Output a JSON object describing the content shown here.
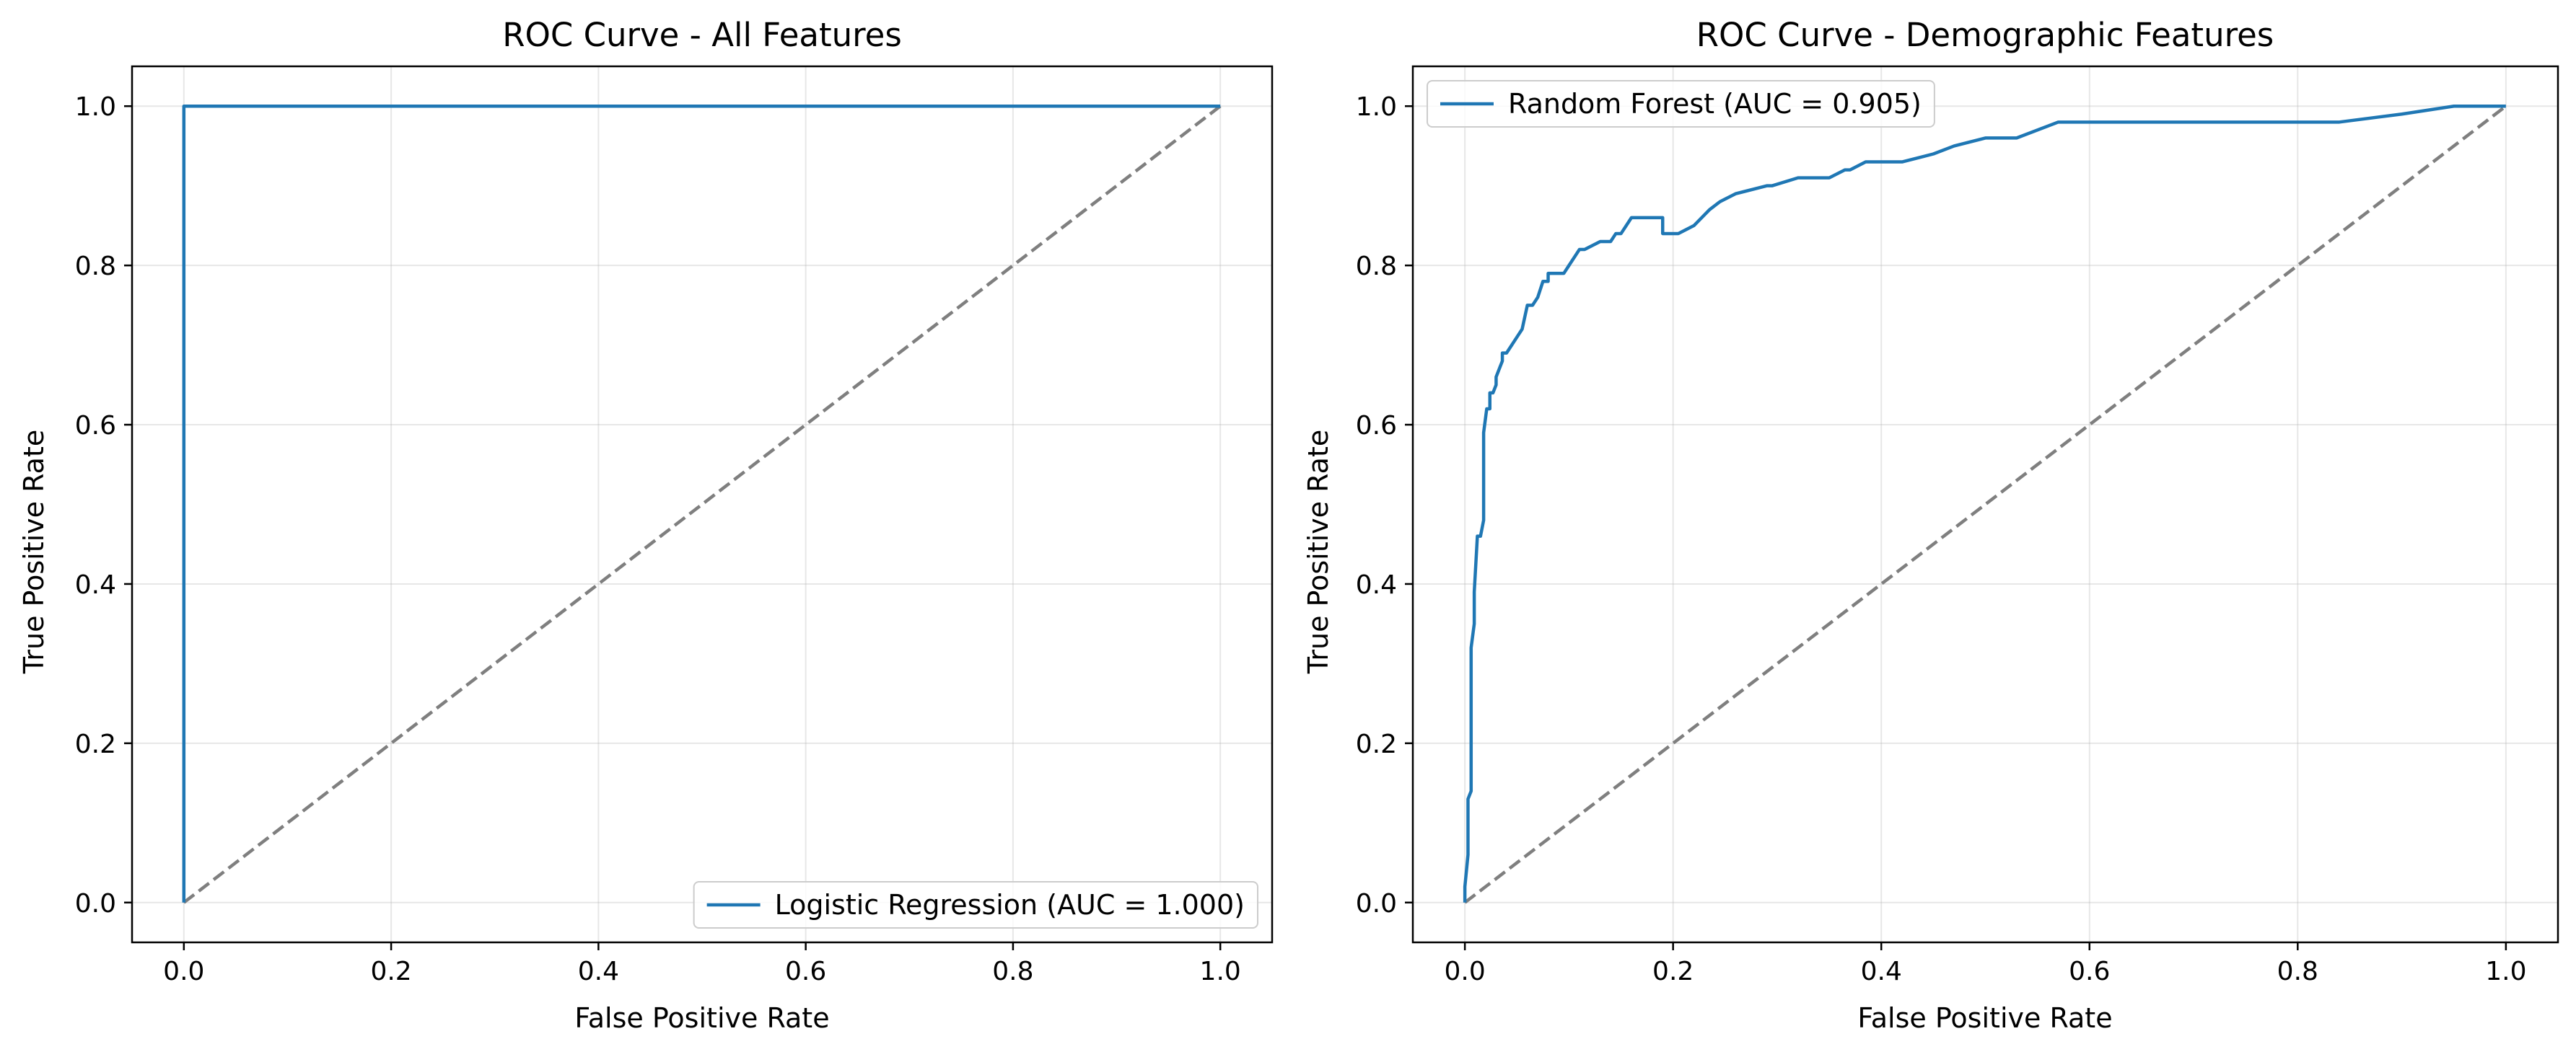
{
  "chart_data": [
    {
      "type": "line",
      "title": "ROC Curve - All Features",
      "xlabel": "False Positive Rate",
      "ylabel": "True Positive Rate",
      "xlim": [
        -0.05,
        1.05
      ],
      "ylim": [
        -0.05,
        1.05
      ],
      "xticks": [
        "0.0",
        "0.2",
        "0.4",
        "0.6",
        "0.8",
        "1.0"
      ],
      "yticks": [
        "0.0",
        "0.2",
        "0.4",
        "0.6",
        "0.8",
        "1.0"
      ],
      "grid": true,
      "legend_position": "bottom-right",
      "series": [
        {
          "name": "Logistic Regression (AUC = 1.000)",
          "color": "#1f77b4",
          "x": [
            0.0,
            0.0,
            1.0
          ],
          "y": [
            0.0,
            1.0,
            1.0
          ]
        }
      ],
      "reference_line": {
        "color": "#7f7f7f",
        "style": "dashed",
        "x": [
          0.0,
          1.0
        ],
        "y": [
          0.0,
          1.0
        ]
      }
    },
    {
      "type": "line",
      "title": "ROC Curve - Demographic Features",
      "xlabel": "False Positive Rate",
      "ylabel": "True Positive Rate",
      "xlim": [
        -0.05,
        1.05
      ],
      "ylim": [
        -0.05,
        1.05
      ],
      "xticks": [
        "0.0",
        "0.2",
        "0.4",
        "0.6",
        "0.8",
        "1.0"
      ],
      "yticks": [
        "0.0",
        "0.2",
        "0.4",
        "0.6",
        "0.8",
        "1.0"
      ],
      "grid": true,
      "legend_position": "top-left",
      "series": [
        {
          "name": "Random Forest (AUC = 0.905)",
          "color": "#1f77b4",
          "x": [
            0.0,
            0.0,
            0.003,
            0.003,
            0.006,
            0.006,
            0.009,
            0.009,
            0.012,
            0.015,
            0.018,
            0.018,
            0.021,
            0.024,
            0.024,
            0.027,
            0.03,
            0.03,
            0.036,
            0.036,
            0.04,
            0.045,
            0.05,
            0.055,
            0.06,
            0.065,
            0.07,
            0.075,
            0.08,
            0.08,
            0.09,
            0.095,
            0.1,
            0.11,
            0.115,
            0.13,
            0.14,
            0.145,
            0.15,
            0.16,
            0.17,
            0.19,
            0.19,
            0.205,
            0.22,
            0.235,
            0.245,
            0.26,
            0.29,
            0.295,
            0.32,
            0.35,
            0.365,
            0.37,
            0.385,
            0.42,
            0.45,
            0.47,
            0.5,
            0.53,
            0.57,
            0.6,
            0.615,
            0.65,
            0.7,
            0.8,
            0.84,
            0.9,
            0.95,
            0.96,
            1.0
          ],
          "y": [
            0.0,
            0.02,
            0.06,
            0.13,
            0.14,
            0.32,
            0.35,
            0.39,
            0.46,
            0.46,
            0.48,
            0.59,
            0.62,
            0.62,
            0.64,
            0.64,
            0.65,
            0.66,
            0.68,
            0.69,
            0.69,
            0.7,
            0.71,
            0.72,
            0.75,
            0.75,
            0.76,
            0.78,
            0.78,
            0.79,
            0.79,
            0.79,
            0.8,
            0.82,
            0.82,
            0.83,
            0.83,
            0.84,
            0.84,
            0.86,
            0.86,
            0.86,
            0.84,
            0.84,
            0.85,
            0.87,
            0.88,
            0.89,
            0.9,
            0.9,
            0.91,
            0.91,
            0.92,
            0.92,
            0.93,
            0.93,
            0.94,
            0.95,
            0.96,
            0.96,
            0.98,
            0.98,
            0.98,
            0.98,
            0.98,
            0.98,
            0.98,
            0.99,
            1.0,
            1.0,
            1.0
          ]
        }
      ],
      "reference_line": {
        "color": "#7f7f7f",
        "style": "dashed",
        "x": [
          0.0,
          1.0
        ],
        "y": [
          0.0,
          1.0
        ]
      }
    }
  ]
}
